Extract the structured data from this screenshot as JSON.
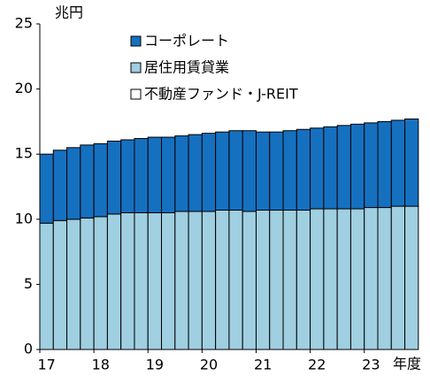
{
  "chart_data": {
    "type": "stacked_bar",
    "y_unit_label": "兆円",
    "x_unit_label": "年度",
    "categories": [
      "17",
      null,
      null,
      null,
      "18",
      null,
      null,
      null,
      "19",
      null,
      null,
      null,
      "20",
      null,
      null,
      null,
      "21",
      null,
      null,
      null,
      "22",
      null,
      null,
      null,
      "23",
      null,
      null,
      null
    ],
    "series": [
      {
        "name": "居住用賃貸業",
        "color": "#9fcfe0",
        "values": [
          9.7,
          9.9,
          10.0,
          10.1,
          10.2,
          10.4,
          10.5,
          10.5,
          10.5,
          10.5,
          10.6,
          10.6,
          10.6,
          10.7,
          10.7,
          10.6,
          10.7,
          10.7,
          10.7,
          10.7,
          10.8,
          10.8,
          10.8,
          10.8,
          10.9,
          10.9,
          11.0,
          11.0
        ]
      },
      {
        "name": "コーポレート",
        "color": "#1670c0",
        "values": [
          5.3,
          5.4,
          5.5,
          5.6,
          5.6,
          5.6,
          5.6,
          5.7,
          5.8,
          5.8,
          5.8,
          5.9,
          6.0,
          6.0,
          6.1,
          6.2,
          6.0,
          6.0,
          6.1,
          6.2,
          6.2,
          6.3,
          6.4,
          6.5,
          6.5,
          6.6,
          6.6,
          6.7
        ]
      },
      {
        "name": "不動産ファンド・J-REIT",
        "color": "#ffffff",
        "values": [
          0,
          0,
          0,
          0,
          0,
          0,
          0,
          0,
          0,
          0,
          0,
          0,
          0,
          0,
          0,
          0,
          0,
          0,
          0,
          0,
          0,
          0,
          0,
          0,
          0,
          0,
          0,
          0
        ]
      }
    ],
    "legend_order": [
      1,
      0,
      2
    ],
    "ylim": [
      0,
      25
    ],
    "yticks": [
      0,
      5,
      10,
      15,
      20,
      25
    ]
  }
}
